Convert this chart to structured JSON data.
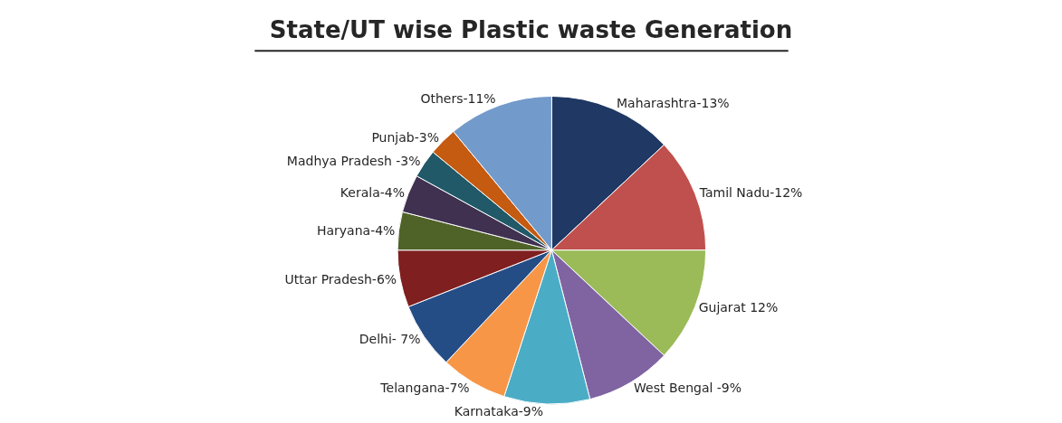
{
  "chart_data": {
    "type": "pie",
    "title": "State/UT wise Plastic waste Generation",
    "categories": [
      "Maharashtra-13%",
      "Tamil Nadu-12%",
      "Gujarat 12%",
      "West Bengal -9%",
      "Karnataka-9%",
      "Telangana-7%",
      "Delhi- 7%",
      "Uttar Pradesh-6%",
      "Haryana-4%",
      "Kerala-4%",
      "Madhya Pradesh -3%",
      "Punjab-3%",
      "Others-11%"
    ],
    "values": [
      13,
      12,
      12,
      9,
      9,
      7,
      7,
      6,
      4,
      4,
      3,
      3,
      11
    ],
    "colors": [
      "#1f3864",
      "#c0504d",
      "#9bbb59",
      "#8064a2",
      "#4bacc6",
      "#f79646",
      "#254d85",
      "#7f1f1f",
      "#4f6228",
      "#403151",
      "#215968",
      "#c55a11",
      "#729aca"
    ],
    "legend": false
  }
}
